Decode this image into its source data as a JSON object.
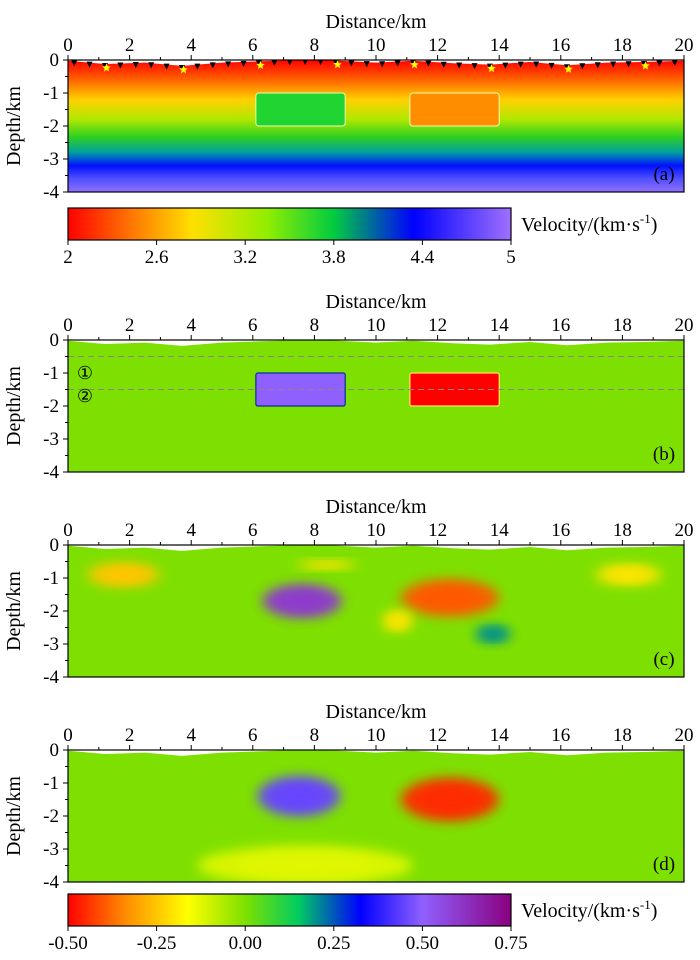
{
  "chart_data": [
    {
      "type": "heatmap",
      "panel_label": "(a)",
      "xlabel": "Distance/km",
      "ylabel": "Depth/km",
      "xlim": [
        0,
        20
      ],
      "ylim": [
        -4,
        0
      ],
      "xticks": [
        "0",
        "2",
        "4",
        "6",
        "8",
        "10",
        "12",
        "14",
        "16",
        "18",
        "20"
      ],
      "yticks": [
        "0",
        "-1",
        "-2",
        "-3",
        "-4"
      ],
      "field": "background velocity increasing with depth from 2.0 at surface to 5.0 at 4 km",
      "anomalies": [
        {
          "x": [
            6.1,
            9.0
          ],
          "depth": [
            -2.0,
            -1.0
          ],
          "value": 3.7
        },
        {
          "x": [
            11.1,
            14.0
          ],
          "depth": [
            -2.0,
            -1.0
          ],
          "value": 2.5
        }
      ],
      "receivers": [
        0.2,
        0.7,
        1.2,
        1.7,
        2.2,
        2.7,
        3.2,
        3.7,
        4.2,
        4.7,
        5.2,
        5.7,
        6.2,
        6.7,
        7.2,
        7.7,
        8.2,
        8.7,
        9.2,
        9.7,
        10.2,
        10.7,
        11.2,
        11.7,
        12.2,
        12.7,
        13.2,
        13.7,
        14.2,
        14.7,
        15.2,
        15.7,
        16.2,
        16.7,
        17.2,
        17.7,
        18.2,
        18.7,
        19.2,
        19.7
      ],
      "sources": [
        1.25,
        3.75,
        6.25,
        8.75,
        11.25,
        13.75,
        16.25,
        18.75
      ],
      "topography": [
        [
          0,
          -0.02
        ],
        [
          1.2,
          -0.12
        ],
        [
          2.5,
          -0.08
        ],
        [
          3.7,
          -0.18
        ],
        [
          5,
          -0.08
        ],
        [
          6.3,
          -0.04
        ],
        [
          7.5,
          0.0
        ],
        [
          8.2,
          0.0
        ],
        [
          8.8,
          -0.02
        ],
        [
          10,
          -0.08
        ],
        [
          11.2,
          -0.02
        ],
        [
          12.5,
          -0.1
        ],
        [
          13.7,
          -0.14
        ],
        [
          15,
          -0.06
        ],
        [
          16.2,
          -0.16
        ],
        [
          17.5,
          -0.08
        ],
        [
          18.7,
          -0.06
        ],
        [
          20,
          -0.02
        ]
      ]
    },
    {
      "type": "colorbar",
      "label": "Velocity/(km·s",
      "label_sup": "-1",
      "label_close": ")",
      "range": [
        2,
        5
      ],
      "ticks": [
        "2",
        "2.6",
        "3.2",
        "3.8",
        "4.4",
        "5"
      ]
    },
    {
      "type": "heatmap",
      "panel_label": "(b)",
      "xlabel": "Distance/km",
      "ylabel": "Depth/km",
      "xlim": [
        0,
        20
      ],
      "ylim": [
        -4,
        0
      ],
      "xticks": [
        "0",
        "2",
        "4",
        "6",
        "8",
        "10",
        "12",
        "14",
        "16",
        "18",
        "20"
      ],
      "yticks": [
        "0",
        "-1",
        "-2",
        "-3",
        "-4"
      ],
      "background": 0.0,
      "anomalies": [
        {
          "x": [
            6.1,
            9.0
          ],
          "depth": [
            -2.0,
            -1.0
          ],
          "value": 0.5
        },
        {
          "x": [
            11.1,
            14.0
          ],
          "depth": [
            -2.0,
            -1.0
          ],
          "value": -0.5
        }
      ],
      "dashed_lines_depth": [
        -0.5,
        -1.5
      ],
      "layer_markers": [
        "①",
        "②"
      ]
    },
    {
      "type": "heatmap",
      "panel_label": "(c)",
      "xlabel": "Distance/km",
      "ylabel": "Depth/km",
      "xlim": [
        0,
        20
      ],
      "ylim": [
        -4,
        0
      ],
      "xticks": [
        "0",
        "2",
        "4",
        "6",
        "8",
        "10",
        "12",
        "14",
        "16",
        "18",
        "20"
      ],
      "yticks": [
        "0",
        "-1",
        "-2",
        "-3",
        "-4"
      ],
      "background": 0.0,
      "blobs": [
        {
          "x": 1.8,
          "depth": -0.9,
          "rx": 1.2,
          "ry": 0.35,
          "value": -0.25
        },
        {
          "x": 7.6,
          "depth": -1.7,
          "rx": 1.3,
          "ry": 0.5,
          "value": 0.6
        },
        {
          "x": 8.4,
          "depth": -0.6,
          "rx": 1.0,
          "ry": 0.12,
          "value": -0.2
        },
        {
          "x": 12.4,
          "depth": -1.6,
          "rx": 1.6,
          "ry": 0.55,
          "value": -0.4
        },
        {
          "x": 10.7,
          "depth": -2.3,
          "rx": 0.5,
          "ry": 0.3,
          "value": -0.2
        },
        {
          "x": 18.2,
          "depth": -0.9,
          "rx": 1.1,
          "ry": 0.3,
          "value": -0.2
        },
        {
          "x": 13.8,
          "depth": -2.7,
          "rx": 0.6,
          "ry": 0.25,
          "value": 0.2
        }
      ]
    },
    {
      "type": "heatmap",
      "panel_label": "(d)",
      "xlabel": "Distance/km",
      "ylabel": "Depth/km",
      "xlim": [
        0,
        20
      ],
      "ylim": [
        -4,
        0
      ],
      "xticks": [
        "0",
        "2",
        "4",
        "6",
        "8",
        "10",
        "12",
        "14",
        "16",
        "18",
        "20"
      ],
      "yticks": [
        "0",
        "-1",
        "-2",
        "-3",
        "-4"
      ],
      "background": 0.0,
      "blobs": [
        {
          "x": 7.5,
          "depth": -1.4,
          "rx": 1.35,
          "ry": 0.6,
          "value": 0.45
        },
        {
          "x": 12.4,
          "depth": -1.5,
          "rx": 1.6,
          "ry": 0.65,
          "value": -0.45
        },
        {
          "x": 7.7,
          "depth": -3.5,
          "rx": 3.5,
          "ry": 0.6,
          "value": -0.12
        }
      ]
    },
    {
      "type": "colorbar",
      "label": "Velocity/(km·s",
      "label_sup": "-1",
      "label_close": ")",
      "range": [
        -0.5,
        0.75
      ],
      "ticks": [
        "-0.50",
        "-0.25",
        "0.00",
        "0.25",
        "0.50",
        "0.75"
      ]
    }
  ],
  "colors": {
    "red": "#ff0000",
    "orange": "#ff8c00",
    "yellow": "#ffff00",
    "green": "#66dd00",
    "blue": "#0000ff",
    "lavender": "#a070ff",
    "purple": "#8a007f",
    "receiver": "#000000",
    "source": "#ffff00"
  }
}
